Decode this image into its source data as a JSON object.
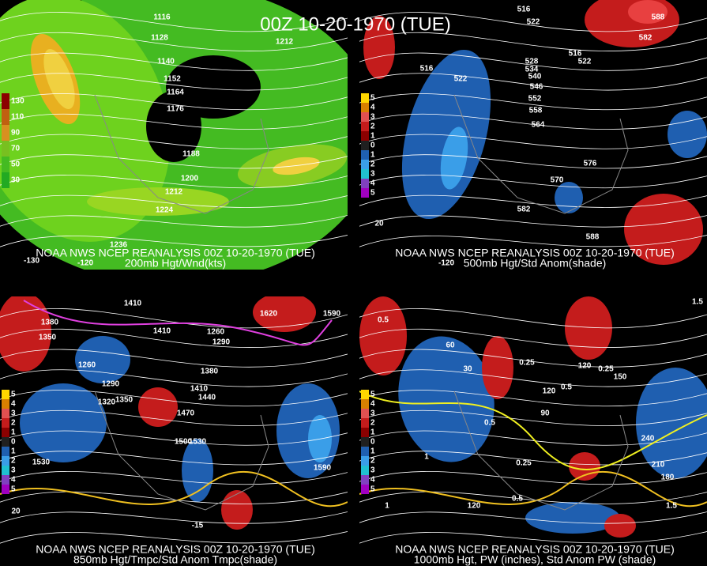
{
  "title": "00Z 10-20-1970 (TUE)",
  "panels": [
    {
      "caption": "NOAA NWS NCEP REANALYSIS 00Z 10-20-1970 (TUE)",
      "subtitle": "200mb Hgt/Wnd(kts)",
      "legend": [
        "130",
        "110",
        "90",
        "70",
        "50",
        "30"
      ],
      "contour_labels": [
        "1116",
        "1128",
        "1140",
        "1152",
        "1164",
        "1176",
        "1188",
        "1200",
        "1212",
        "1224",
        "1236",
        "1212",
        "-130",
        "-120"
      ]
    },
    {
      "caption": "NOAA NWS NCEP REANALYSIS 00Z 10-20-1970 (TUE)",
      "subtitle": "500mb Hgt/Std Anom(shade)",
      "legend": [
        "5",
        "4",
        "3",
        "2",
        "1",
        "0",
        "1",
        "2",
        "3",
        "4",
        "5"
      ],
      "contour_labels": [
        "516",
        "522",
        "516",
        "522",
        "528",
        "534",
        "540",
        "546",
        "552",
        "558",
        "564",
        "576",
        "570",
        "582",
        "588",
        "582",
        "588",
        "20",
        "-120",
        "516",
        "522"
      ]
    },
    {
      "caption": "NOAA NWS NCEP REANALYSIS 00Z 10-20-1970 (TUE)",
      "subtitle": "850mb Hgt/Tmpc/Std Anom Tmpc(shade)",
      "legend": [
        "5",
        "4",
        "3",
        "2",
        "1",
        "0",
        "1",
        "2",
        "3",
        "4",
        "5"
      ],
      "contour_labels": [
        "1530",
        "1590",
        "1620",
        "1380",
        "1410",
        "1440",
        "1470",
        "1350",
        "1380",
        "1290",
        "1320",
        "1350",
        "1500",
        "1530",
        "1590",
        "1260",
        "1410",
        "1410",
        "1260",
        "1290",
        "20",
        "-15"
      ]
    },
    {
      "caption": "NOAA NWS NCEP REANALYSIS 00Z 10-20-1970 (TUE)",
      "subtitle": "1000mb Hgt, PW (inches), Std Anom PW (shade)",
      "legend": [
        "5",
        "4",
        "3",
        "2",
        "1",
        "0",
        "1",
        "2",
        "3",
        "4",
        "5"
      ],
      "contour_labels": [
        "0.5",
        "60",
        "30",
        "0.25",
        "120",
        "120",
        "0.5",
        "0.25",
        "150",
        "0.5",
        "90",
        "240",
        "210",
        "180",
        "0.25",
        "0.5",
        "120",
        "1",
        "1",
        "1.5",
        "1.5"
      ]
    }
  ]
}
